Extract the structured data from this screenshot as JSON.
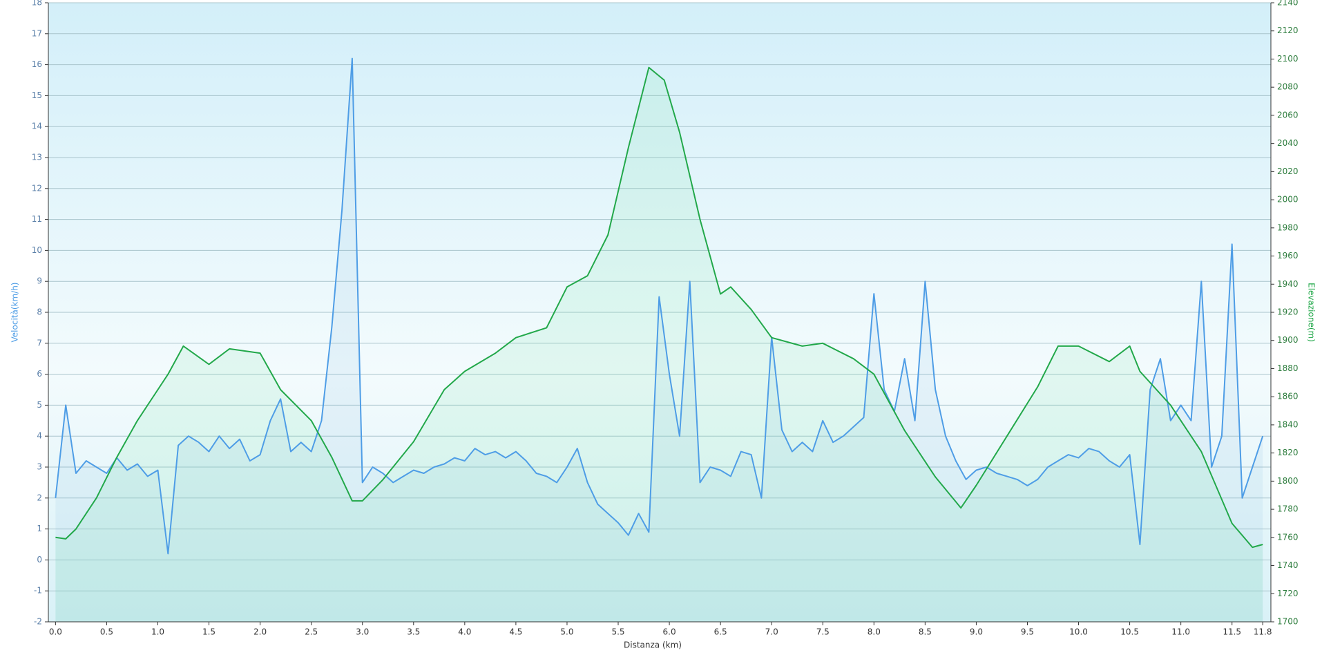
{
  "chart_data": {
    "type": "line",
    "x_label": "Distanza  (km)",
    "y_label": "Velocità(km/h)",
    "y2_label": "Elevazione(m)",
    "xlim": [
      -0.07,
      11.88
    ],
    "xticks": [
      {
        "value": 0,
        "label": "0.0"
      },
      0.5,
      {
        "value": 1,
        "label": "1.0"
      },
      1.5,
      {
        "value": 2,
        "label": "2.0"
      },
      2.5,
      {
        "value": 3,
        "label": "3.0"
      },
      3.5,
      {
        "value": 4,
        "label": "4.0"
      },
      4.5,
      {
        "value": 5,
        "label": "5.0"
      },
      5.5,
      {
        "value": 6,
        "label": "6.0"
      },
      6.5,
      {
        "value": 7,
        "label": "7.0"
      },
      7.5,
      {
        "value": 8,
        "label": "8.0"
      },
      8.5,
      {
        "value": 9,
        "label": "9.0"
      },
      9.5,
      {
        "value": 10,
        "label": "10.0"
      },
      10.5,
      {
        "value": 11,
        "label": "11.0"
      },
      11.5,
      11.8
    ],
    "ylim": [
      -2,
      18
    ],
    "yticks": [
      -2,
      -1,
      0,
      1,
      2,
      3,
      4,
      5,
      6,
      7,
      8,
      9,
      10,
      11,
      12,
      13,
      14,
      15,
      16,
      17,
      18
    ],
    "y2lim": [
      1700,
      2140
    ],
    "y2ticks": [
      1700,
      1720,
      1740,
      1760,
      1780,
      1800,
      1820,
      1840,
      1860,
      1880,
      1900,
      1920,
      1940,
      1960,
      1980,
      2000,
      2020,
      2040,
      2060,
      2080,
      2100,
      2120,
      2140
    ],
    "grid": true,
    "series": [
      {
        "color": "#4e9de6",
        "x": [
          0,
          0.1,
          0.2,
          0.3,
          0.4,
          0.5,
          0.6,
          0.7,
          0.8,
          0.9,
          1,
          1.1,
          1.2,
          1.3,
          1.4,
          1.5,
          1.6,
          1.7,
          1.8,
          1.9,
          2,
          2.1,
          2.2,
          2.3,
          2.4,
          2.5,
          2.6,
          2.7,
          2.8,
          2.9,
          3,
          3.1,
          3.2,
          3.3,
          3.4,
          3.5,
          3.6,
          3.7,
          3.8,
          3.9,
          4,
          4.1,
          4.2,
          4.3,
          4.4,
          4.5,
          4.6,
          4.7,
          4.8,
          4.9,
          5,
          5.1,
          5.2,
          5.3,
          5.4,
          5.5,
          5.6,
          5.7,
          5.8,
          5.9,
          6,
          6.1,
          6.2,
          6.3,
          6.4,
          6.5,
          6.6,
          6.7,
          6.8,
          6.9,
          7,
          7.1,
          7.2,
          7.3,
          7.4,
          7.5,
          7.6,
          7.7,
          7.8,
          7.9,
          8,
          8.1,
          8.2,
          8.3,
          8.4,
          8.5,
          8.6,
          8.7,
          8.8,
          8.9,
          9,
          9.1,
          9.2,
          9.3,
          9.4,
          9.5,
          9.6,
          9.7,
          9.8,
          9.9,
          10,
          10.1,
          10.2,
          10.3,
          10.4,
          10.5,
          10.6,
          10.7,
          10.8,
          10.9,
          11,
          11.1,
          11.2,
          11.3,
          11.4,
          11.5,
          11.6,
          11.7,
          11.8
        ],
        "values": [
          2.0,
          5.0,
          2.8,
          3.2,
          3.0,
          2.8,
          3.3,
          2.9,
          3.1,
          2.7,
          2.9,
          0.2,
          3.7,
          4.0,
          3.8,
          3.5,
          4.0,
          3.6,
          3.9,
          3.2,
          3.4,
          4.5,
          5.2,
          3.5,
          3.8,
          3.5,
          4.5,
          7.5,
          11.3,
          16.2,
          2.5,
          3.0,
          2.8,
          2.5,
          2.7,
          2.9,
          2.8,
          3.0,
          3.1,
          3.3,
          3.2,
          3.6,
          3.4,
          3.5,
          3.3,
          3.5,
          3.2,
          2.8,
          2.7,
          2.5,
          3.0,
          3.6,
          2.5,
          1.8,
          1.5,
          1.2,
          0.8,
          1.5,
          0.9,
          8.5,
          6.0,
          4.0,
          9.0,
          2.5,
          3.0,
          2.9,
          2.7,
          3.5,
          3.4,
          2.0,
          7.2,
          4.2,
          3.5,
          3.8,
          3.5,
          4.5,
          3.8,
          4.0,
          4.3,
          4.6,
          8.6,
          5.5,
          4.8,
          6.5,
          4.5,
          9.0,
          5.5,
          4.0,
          3.2,
          2.6,
          2.9,
          3.0,
          2.8,
          2.7,
          2.6,
          2.4,
          2.6,
          3.0,
          3.2,
          3.4,
          3.3,
          3.6,
          3.5,
          3.2,
          3.0,
          3.4,
          0.5,
          5.5,
          6.5,
          4.5,
          5.0,
          4.5,
          9.0,
          3.0,
          4.0,
          10.2,
          2.0,
          3.0,
          4.0
        ]
      },
      {
        "color": "#22a84a",
        "axis": "y2",
        "x": [
          0,
          0.1,
          0.2,
          0.4,
          0.6,
          0.8,
          1.0,
          1.1,
          1.25,
          1.5,
          1.7,
          2.0,
          2.2,
          2.5,
          2.7,
          2.9,
          3.0,
          3.2,
          3.5,
          3.8,
          4.0,
          4.3,
          4.5,
          4.8,
          5.0,
          5.2,
          5.4,
          5.6,
          5.8,
          5.95,
          6.1,
          6.3,
          6.5,
          6.6,
          6.8,
          7.0,
          7.3,
          7.5,
          7.8,
          8.0,
          8.3,
          8.6,
          8.85,
          9.0,
          9.3,
          9.6,
          9.8,
          10.0,
          10.3,
          10.5,
          10.6,
          10.9,
          11.2,
          11.5,
          11.7,
          11.8
        ],
        "values": [
          1760,
          1759,
          1766,
          1788,
          1817,
          1843,
          1865,
          1876,
          1896,
          1883,
          1894,
          1891,
          1865,
          1843,
          1817,
          1786,
          1786,
          1801,
          1828,
          1865,
          1878,
          1891,
          1902,
          1909,
          1938,
          1946,
          1975,
          2037,
          2094,
          2085,
          2048,
          1986,
          1933,
          1938,
          1922,
          1902,
          1896,
          1898,
          1887,
          1876,
          1836,
          1803,
          1781,
          1797,
          1832,
          1867,
          1896,
          1896,
          1885,
          1896,
          1878,
          1854,
          1821,
          1770,
          1753,
          1755
        ]
      }
    ]
  }
}
